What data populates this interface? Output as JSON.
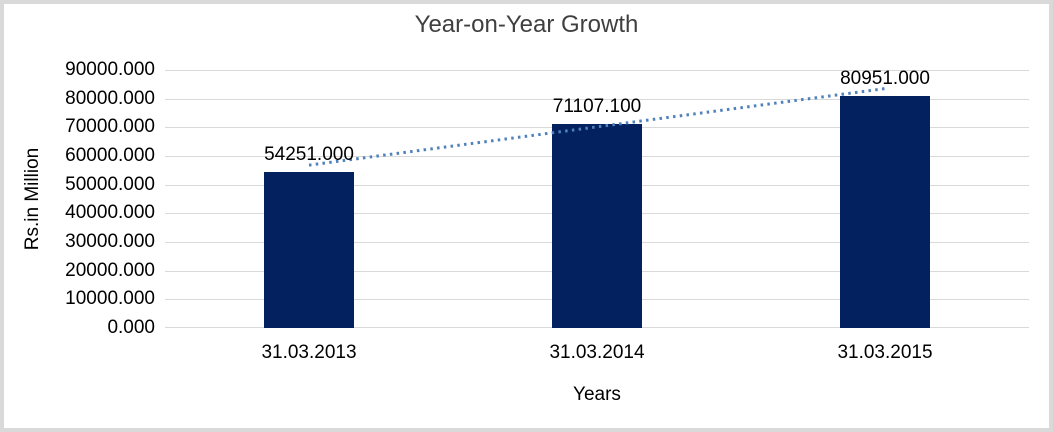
{
  "frame": {
    "border_color": "#D9D9D9",
    "background_color": "#FFFFFF"
  },
  "chart_data": {
    "type": "bar",
    "title": "Year-on-Year Growth",
    "xlabel": "Years",
    "ylabel": "Rs.in Million",
    "categories": [
      "31.03.2013",
      "31.03.2014",
      "31.03.2015"
    ],
    "values": [
      54251.0,
      71107.1,
      80951.0
    ],
    "data_labels": [
      "54251.000",
      "71107.100",
      "80951.000"
    ],
    "ylim": [
      0,
      90000
    ],
    "ytick_step": 10000,
    "yticks": [
      "90000.000",
      "80000.000",
      "70000.000",
      "60000.000",
      "50000.000",
      "40000.000",
      "30000.000",
      "20000.000",
      "10000.000",
      "0.000"
    ],
    "grid": true,
    "legend": "none",
    "bar_color": "#02215E",
    "gridline_color": "#D9D9D9",
    "title_color": "#3F3F3F",
    "trendline": {
      "type": "linear",
      "style": "dotted",
      "color": "#4F81BD"
    }
  }
}
